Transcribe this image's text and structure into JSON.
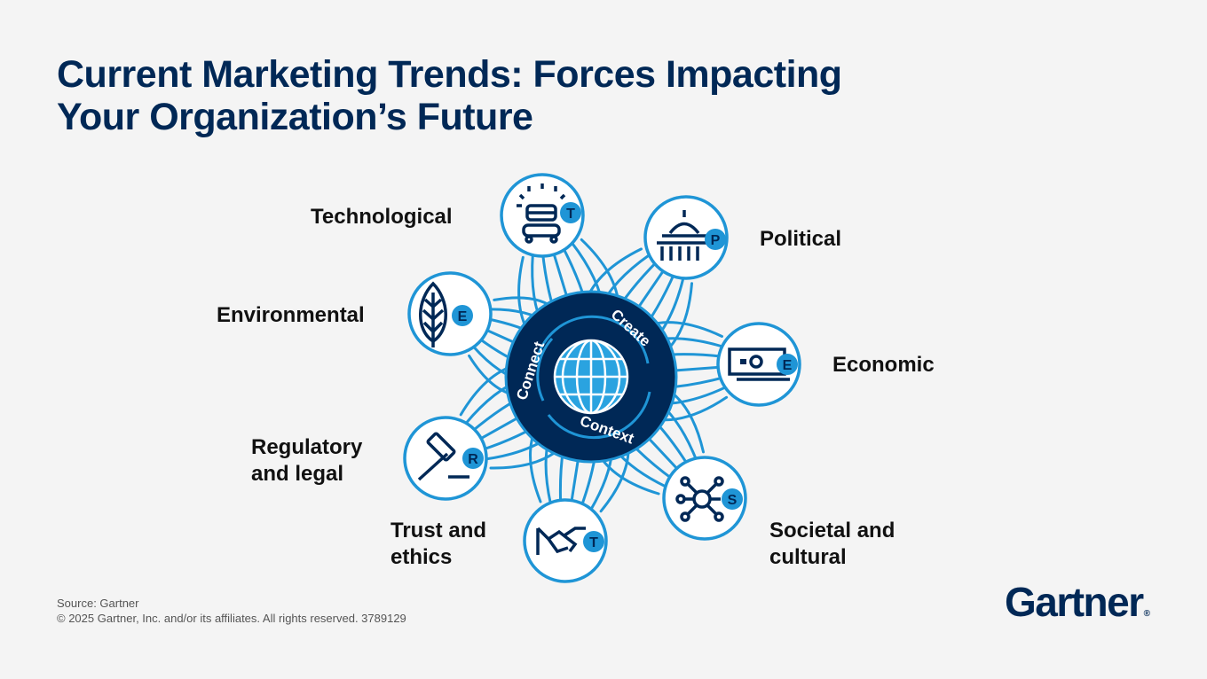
{
  "title": {
    "line1": "Current Marketing Trends: Forces Impacting",
    "line2": "Your Organization’s Future"
  },
  "center": {
    "icon": "globe-icon",
    "arcs": [
      "Connect",
      "Create",
      "Context"
    ]
  },
  "forces": [
    {
      "label_lines": [
        "Technological"
      ],
      "letter": "T",
      "icon": "server-robot-icon"
    },
    {
      "label_lines": [
        "Political"
      ],
      "letter": "P",
      "icon": "capitol-building-icon"
    },
    {
      "label_lines": [
        "Environmental"
      ],
      "letter": "E",
      "icon": "leaf-icon"
    },
    {
      "label_lines": [
        "Economic"
      ],
      "letter": "E",
      "icon": "money-bill-icon"
    },
    {
      "label_lines": [
        "Regulatory",
        "and legal"
      ],
      "letter": "R",
      "icon": "gavel-icon"
    },
    {
      "label_lines": [
        "Trust and",
        "ethics"
      ],
      "letter": "T",
      "icon": "handshake-icon"
    },
    {
      "label_lines": [
        "Societal and",
        "cultural"
      ],
      "letter": "S",
      "icon": "network-people-icon"
    }
  ],
  "footer": {
    "source": "Source: Gartner",
    "copyright": "© 2025 Gartner, Inc. and/or its affiliates. All rights reserved. 3789129"
  },
  "brand": {
    "logo_text": "Gartner",
    "logo_mark": "®"
  },
  "colors": {
    "navy": "#002856",
    "accent": "#1f95d6",
    "light_accent": "#cfe9f7",
    "background": "#f4f4f4"
  }
}
